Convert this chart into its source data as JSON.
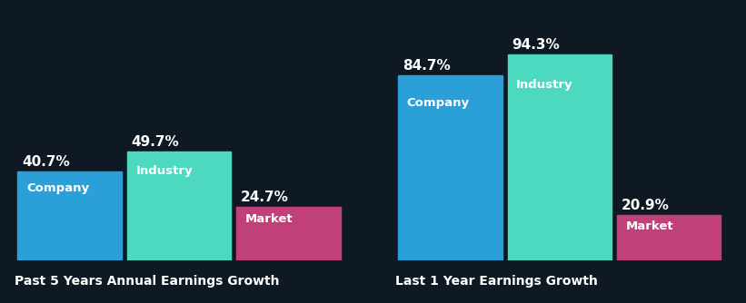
{
  "background_color": "#0f1923",
  "group1": {
    "title": "Past 5 Years Annual Earnings Growth",
    "bars": [
      {
        "label": "Company",
        "value": 40.7,
        "color": "#2b9fd8"
      },
      {
        "label": "Industry",
        "value": 49.7,
        "color": "#4dd9c0"
      },
      {
        "label": "Market",
        "value": 24.7,
        "color": "#c2407a"
      }
    ]
  },
  "group2": {
    "title": "Last 1 Year Earnings Growth",
    "bars": [
      {
        "label": "Company",
        "value": 84.7,
        "color": "#2b9fd8"
      },
      {
        "label": "Industry",
        "value": 94.3,
        "color": "#4dd9c0"
      },
      {
        "label": "Market",
        "value": 20.9,
        "color": "#c2407a"
      }
    ]
  },
  "label_fontsize": 9.5,
  "value_fontsize": 11,
  "title_fontsize": 10,
  "label_color": "#ffffff",
  "value_color": "#ffffff",
  "title_color": "#ffffff",
  "ylim": [
    0,
    108
  ]
}
